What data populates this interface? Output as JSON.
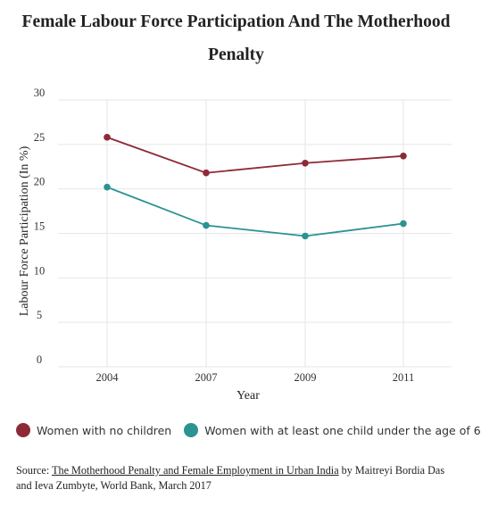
{
  "colors": {
    "no_children": "#8e2a35",
    "with_child": "#2b9391",
    "grid": "#e6e6e6",
    "axis_text": "#333333"
  },
  "chart_data": {
    "type": "line",
    "title": "Female Labour Force Participation And The Motherhood Penalty",
    "xlabel": "Year",
    "ylabel": "Labour Force Participation (In %)",
    "categories": [
      "2004",
      "2007",
      "2009",
      "2011"
    ],
    "yticks": [
      "0",
      "5",
      "10",
      "15",
      "20",
      "25",
      "30"
    ],
    "ylim": [
      0,
      30
    ],
    "grid": true,
    "legend_position": "bottom",
    "series": [
      {
        "name": "Women with no children",
        "color": "#8e2a35",
        "values": [
          25.8,
          21.8,
          22.9,
          23.7
        ]
      },
      {
        "name": "Women with at least one child under the age of 6",
        "color": "#2b9391",
        "values": [
          20.2,
          15.9,
          14.7,
          16.1
        ]
      }
    ]
  },
  "source": {
    "prefix": "Source: ",
    "link_text": "The Motherhood Penalty and Female Employment in Urban India",
    "suffix": " by Maitreyi Bordia Das and Ieva Zumbyte, World Bank, March 2017"
  }
}
